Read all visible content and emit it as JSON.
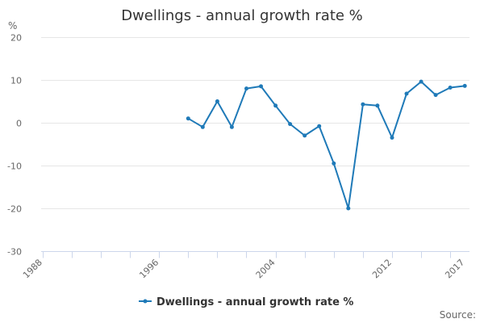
{
  "chart_data": {
    "type": "line",
    "title": "Dwellings - annual growth rate %",
    "ylabel": "%",
    "xlabel": "",
    "xlim": [
      1987.9,
      2017.1
    ],
    "ylim": [
      -30,
      20
    ],
    "y_ticks": [
      20,
      10,
      0,
      -10,
      -20,
      -30
    ],
    "x_tick_labels": [
      {
        "year": 1988,
        "label": "1988"
      },
      {
        "year": 1996,
        "label": "1996"
      },
      {
        "year": 2004,
        "label": "2004"
      },
      {
        "year": 2012,
        "label": "2012"
      },
      {
        "year": 2017,
        "label": "2017"
      }
    ],
    "x_minor_ticks": [
      1988,
      1990,
      1992,
      1994,
      1996,
      1998,
      2000,
      2002,
      2004,
      2006,
      2008,
      2010,
      2012,
      2014,
      2016
    ],
    "grid": true,
    "legend_position": "bottom-center",
    "series": [
      {
        "name": "Dwellings - annual growth rate %",
        "color": "#1f7ab8",
        "points": [
          {
            "x": 1998,
            "y": 1.0
          },
          {
            "x": 1999,
            "y": -1.0
          },
          {
            "x": 2000,
            "y": 5.0
          },
          {
            "x": 2001,
            "y": -1.0
          },
          {
            "x": 2002,
            "y": 8.0
          },
          {
            "x": 2003,
            "y": 8.5
          },
          {
            "x": 2004,
            "y": 4.0
          },
          {
            "x": 2005,
            "y": -0.3
          },
          {
            "x": 2006,
            "y": -3.0
          },
          {
            "x": 2007,
            "y": -0.8
          },
          {
            "x": 2008,
            "y": -9.5
          },
          {
            "x": 2009,
            "y": -20.0
          },
          {
            "x": 2010,
            "y": 4.3
          },
          {
            "x": 2011,
            "y": 4.0
          },
          {
            "x": 2012,
            "y": -3.5
          },
          {
            "x": 2013,
            "y": 6.8
          },
          {
            "x": 2014,
            "y": 9.6
          },
          {
            "x": 2015,
            "y": 6.5
          },
          {
            "x": 2016,
            "y": 8.2
          },
          {
            "x": 2017,
            "y": 8.6
          }
        ]
      }
    ],
    "source_label": "Source:"
  }
}
